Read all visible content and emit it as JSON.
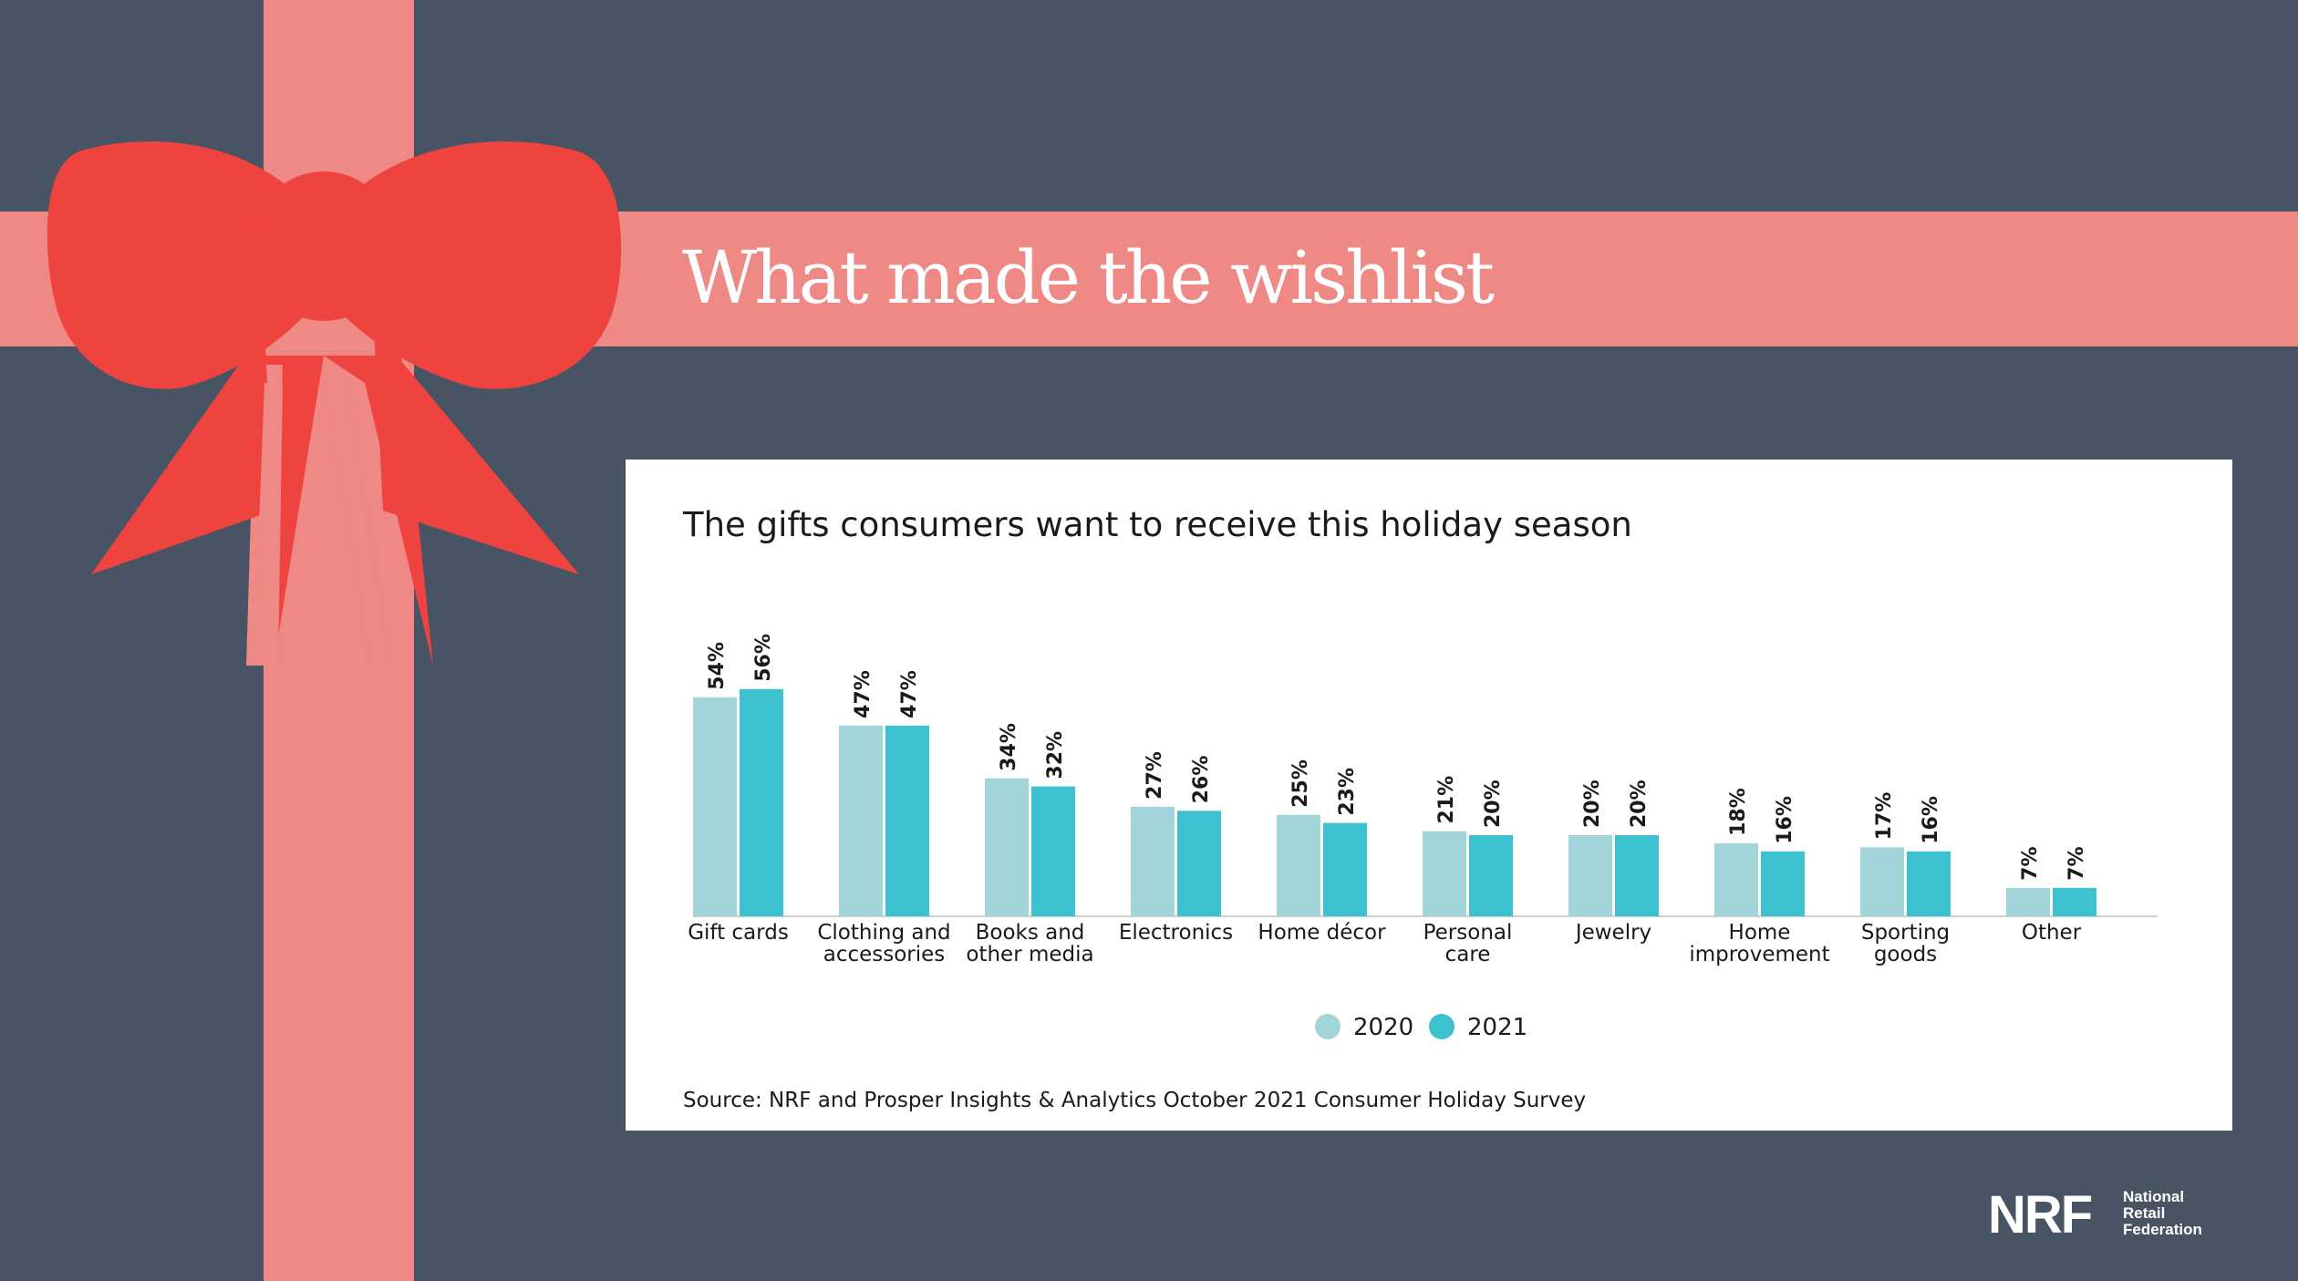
{
  "headline": "What made the wishlist",
  "subtitle": "The gifts consumers want to receive this holiday season",
  "source": "Source: NRF and Prosper Insights & Analytics October 2021 Consumer Holiday Survey",
  "logo": {
    "mark": "NRF",
    "text_lines": [
      "National",
      "Retail",
      "Federation"
    ]
  },
  "colors": {
    "background": "#485464",
    "ribbon": "#ee8985",
    "bow": "#ef4340",
    "series_2020": "#a2d4da",
    "series_2021": "#3ec1cf"
  },
  "chart_data": {
    "type": "bar",
    "categories": [
      [
        "Gift cards"
      ],
      [
        "Clothing and",
        "accessories"
      ],
      [
        "Books and",
        "other media"
      ],
      [
        "Electronics"
      ],
      [
        "Home décor"
      ],
      [
        "Personal",
        "care"
      ],
      [
        "Jewelry"
      ],
      [
        "Home",
        "improvement"
      ],
      [
        "Sporting",
        "goods"
      ],
      [
        "Other"
      ]
    ],
    "series": [
      {
        "name": "2020",
        "color": "#a2d4da",
        "values": [
          54,
          47,
          34,
          27,
          25,
          21,
          20,
          18,
          17,
          7
        ]
      },
      {
        "name": "2021",
        "color": "#3ec1cf",
        "values": [
          56,
          47,
          32,
          26,
          23,
          20,
          20,
          16,
          16,
          7
        ]
      }
    ],
    "value_suffix": "%",
    "ylim": [
      0,
      56
    ],
    "grid": false,
    "legend_position": "bottom-center"
  }
}
